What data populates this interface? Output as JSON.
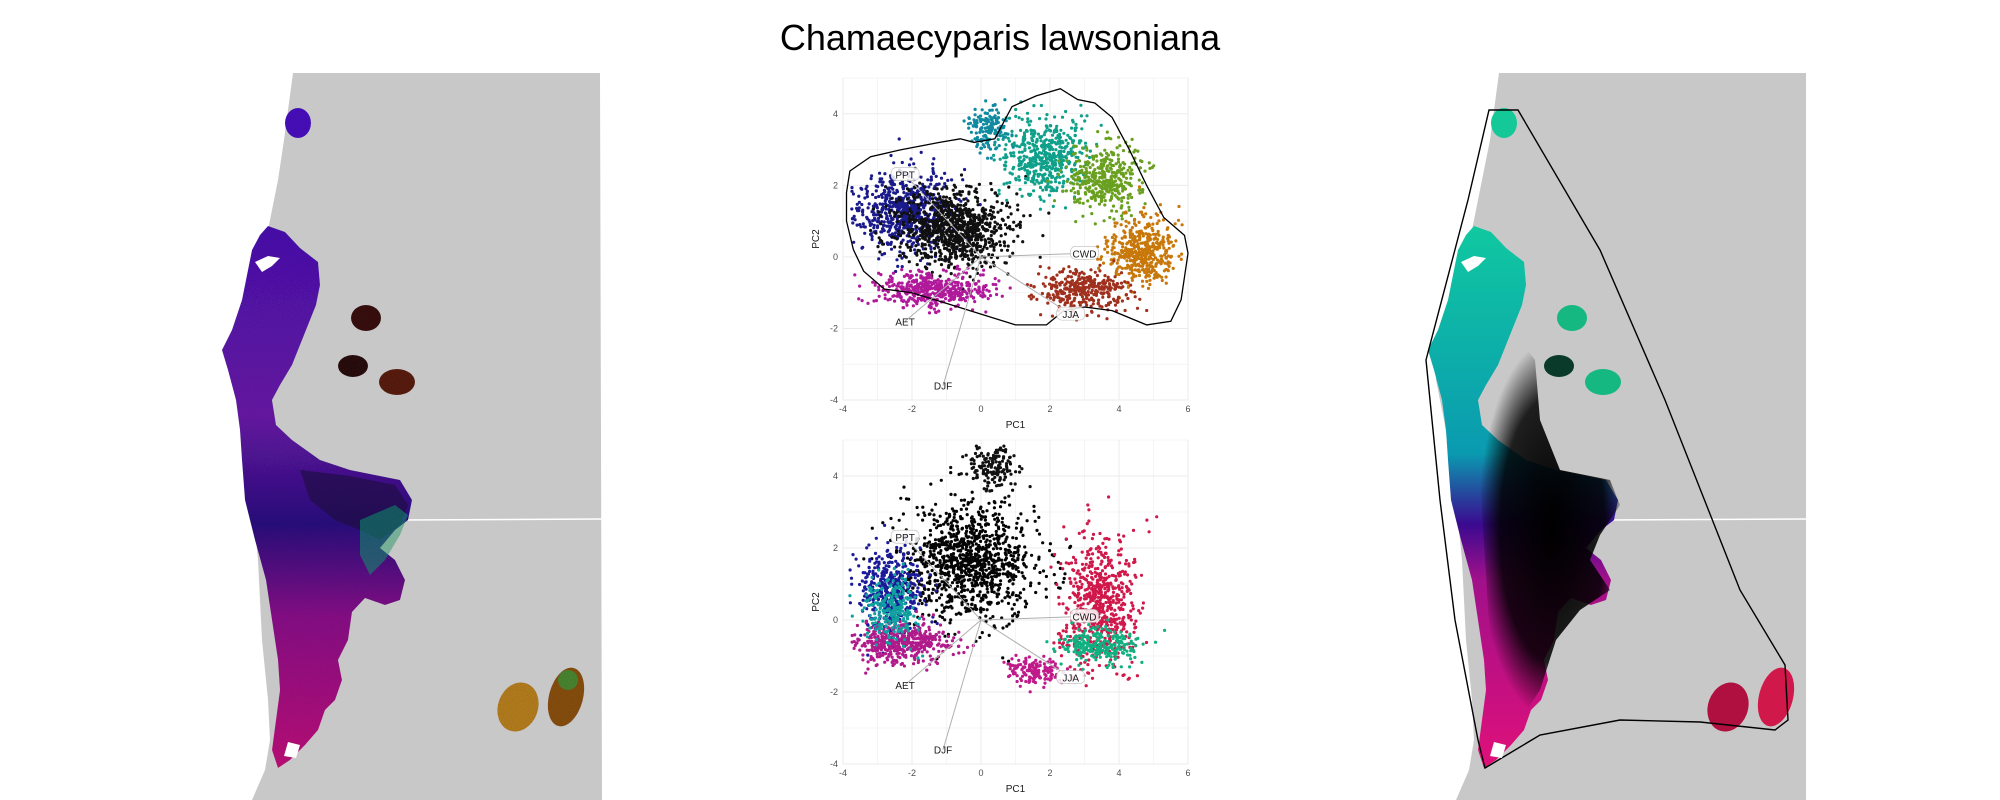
{
  "figure": {
    "title": "Chamaecyparis lawsoniana",
    "colors": {
      "background": "#ffffff",
      "map_land": "#c8c8c8",
      "grid": "#ebebeb",
      "hull": "#000000",
      "vector": "#b0b0b0"
    }
  },
  "chart_data": [
    {
      "id": "pca-top",
      "type": "scatter",
      "title": "",
      "xlabel": "PC1",
      "ylabel": "PC2",
      "xlim": [
        -4,
        6
      ],
      "ylim": [
        -4,
        5
      ],
      "xticks": [
        -4,
        -2,
        0,
        2,
        4,
        6
      ],
      "yticks": [
        -4,
        -2,
        0,
        2,
        4
      ],
      "grid": true,
      "coloring": "2D color wheel over PC space (hue by angle, brightness by distance from centroid)",
      "hull": [
        [
          -3.8,
          2.4
        ],
        [
          -3.2,
          2.8
        ],
        [
          -2.3,
          3.0
        ],
        [
          -1.2,
          3.2
        ],
        [
          -0.6,
          3.3
        ],
        [
          -0.2,
          3.2
        ],
        [
          0.4,
          3.3
        ],
        [
          0.9,
          4.2
        ],
        [
          1.6,
          4.5
        ],
        [
          2.3,
          4.7
        ],
        [
          2.8,
          4.4
        ],
        [
          3.3,
          4.3
        ],
        [
          3.8,
          3.9
        ],
        [
          4.3,
          3.0
        ],
        [
          4.8,
          2.0
        ],
        [
          5.3,
          1.1
        ],
        [
          5.9,
          0.6
        ],
        [
          6.0,
          0.1
        ],
        [
          5.8,
          -1.2
        ],
        [
          5.5,
          -1.8
        ],
        [
          4.8,
          -1.9
        ],
        [
          3.8,
          -1.5
        ],
        [
          3.0,
          -1.4
        ],
        [
          2.4,
          -1.5
        ],
        [
          1.9,
          -1.9
        ],
        [
          1.0,
          -1.9
        ],
        [
          0.0,
          -1.6
        ],
        [
          -1.0,
          -1.3
        ],
        [
          -2.0,
          -1.0
        ],
        [
          -2.8,
          -0.9
        ],
        [
          -3.4,
          -0.4
        ],
        [
          -3.7,
          0.2
        ],
        [
          -3.9,
          1.0
        ],
        [
          -3.9,
          1.8
        ],
        [
          -3.8,
          2.4
        ]
      ],
      "points_regions": [
        {
          "center": [
            -2.2,
            1.3
          ],
          "spread": [
            1.1,
            0.9
          ],
          "count": 700,
          "color": "#1a1a8a"
        },
        {
          "center": [
            -0.8,
            0.8
          ],
          "spread": [
            1.4,
            0.9
          ],
          "count": 900,
          "color": "#101010"
        },
        {
          "center": [
            1.8,
            2.8
          ],
          "spread": [
            1.0,
            0.9
          ],
          "count": 500,
          "color": "#0fa08a"
        },
        {
          "center": [
            3.6,
            2.2
          ],
          "spread": [
            0.9,
            0.8
          ],
          "count": 400,
          "color": "#6aa020"
        },
        {
          "center": [
            4.7,
            0.2
          ],
          "spread": [
            0.9,
            0.8
          ],
          "count": 450,
          "color": "#c8780a"
        },
        {
          "center": [
            3.0,
            -0.9
          ],
          "spread": [
            1.1,
            0.5
          ],
          "count": 350,
          "color": "#a0301e"
        },
        {
          "center": [
            -1.4,
            -0.9
          ],
          "spread": [
            1.4,
            0.4
          ],
          "count": 450,
          "color": "#b01a9a"
        },
        {
          "center": [
            0.2,
            3.6
          ],
          "spread": [
            0.5,
            0.5
          ],
          "count": 150,
          "color": "#108aa0"
        }
      ],
      "vectors": [
        {
          "label": "PPT",
          "x": -2.2,
          "y": 2.3
        },
        {
          "label": "CWD",
          "x": 3.0,
          "y": 0.1
        },
        {
          "label": "JJA",
          "x": 2.6,
          "y": -1.6
        },
        {
          "label": "AET",
          "x": -2.2,
          "y": -1.8
        },
        {
          "label": "DJF",
          "x": -1.1,
          "y": -3.6
        }
      ]
    },
    {
      "id": "pca-bottom",
      "type": "scatter",
      "title": "",
      "xlabel": "PC1",
      "ylabel": "PC2",
      "xlim": [
        -4,
        6
      ],
      "ylim": [
        -4,
        5
      ],
      "xticks": [
        -4,
        -2,
        0,
        2,
        4,
        6
      ],
      "yticks": [
        -4,
        -2,
        0,
        2,
        4
      ],
      "grid": true,
      "coloring": "colors taken from the geographic color ramp of the right map",
      "points_regions": [
        {
          "center": [
            -0.3,
            1.6
          ],
          "spread": [
            1.6,
            1.3
          ],
          "count": 1100,
          "color": "#050505"
        },
        {
          "center": [
            -2.6,
            0.8
          ],
          "spread": [
            0.8,
            1.0
          ],
          "count": 450,
          "color": "#1a1a9a"
        },
        {
          "center": [
            -2.3,
            -0.6
          ],
          "spread": [
            1.2,
            0.5
          ],
          "count": 450,
          "color": "#b01a8a"
        },
        {
          "center": [
            -2.6,
            0.3
          ],
          "spread": [
            0.6,
            0.8
          ],
          "count": 250,
          "color": "#10a0a0"
        },
        {
          "center": [
            3.4,
            0.4
          ],
          "spread": [
            0.9,
            1.5
          ],
          "count": 650,
          "color": "#d0184a"
        },
        {
          "center": [
            3.4,
            -0.7
          ],
          "spread": [
            1.0,
            0.4
          ],
          "count": 250,
          "color": "#10b080"
        },
        {
          "center": [
            1.5,
            -1.4
          ],
          "spread": [
            0.7,
            0.3
          ],
          "count": 150,
          "color": "#c01a8a"
        },
        {
          "center": [
            0.3,
            4.2
          ],
          "spread": [
            0.6,
            0.5
          ],
          "count": 150,
          "color": "#111111"
        }
      ],
      "vectors": [
        {
          "label": "PPT",
          "x": -2.2,
          "y": 2.3
        },
        {
          "label": "CWD",
          "x": 3.0,
          "y": 0.1
        },
        {
          "label": "JJA",
          "x": 2.6,
          "y": -1.6
        },
        {
          "label": "AET",
          "x": -2.2,
          "y": -1.8
        },
        {
          "label": "DJF",
          "x": -1.1,
          "y": -3.6
        }
      ]
    }
  ],
  "maps": [
    {
      "id": "map-left",
      "coloring": "multicolor texture (mostly purple/magenta)"
    },
    {
      "id": "map-right",
      "coloring": "smooth gradient (teal → black → crimson) with convex hull outline"
    }
  ]
}
